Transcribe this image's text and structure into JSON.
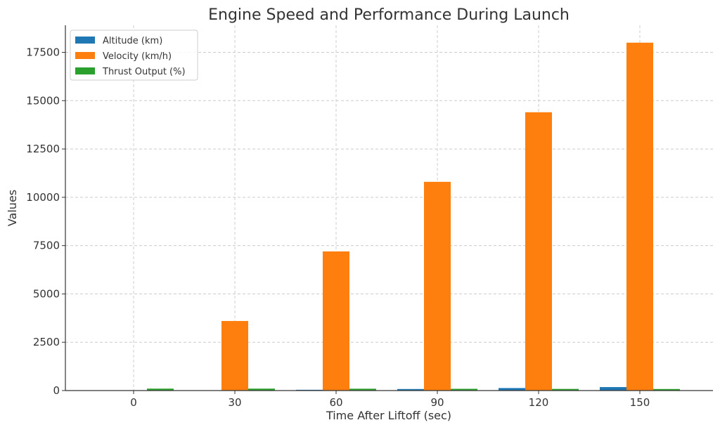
{
  "chart_data": {
    "type": "bar",
    "title": "Engine Speed and Performance During Launch",
    "xlabel": "Time After Liftoff (sec)",
    "ylabel": "Values",
    "categories": [
      "0",
      "30",
      "60",
      "90",
      "120",
      "150"
    ],
    "series": [
      {
        "name": "Altitude (km)",
        "color": "#1f77b4",
        "values": [
          0,
          10,
          40,
          80,
          130,
          180
        ]
      },
      {
        "name": "Velocity (km/h)",
        "color": "#ff7f0e",
        "values": [
          0,
          3600,
          7200,
          10800,
          14400,
          18000
        ]
      },
      {
        "name": "Thrust Output (%)",
        "color": "#2ca02c",
        "values": [
          100,
          100,
          95,
          90,
          85,
          80
        ]
      }
    ],
    "ylim": [
      0,
      18900
    ],
    "yticks": [
      0,
      2500,
      5000,
      7500,
      10000,
      12500,
      15000,
      17500
    ],
    "grid": true,
    "legend_position": "top-left"
  }
}
